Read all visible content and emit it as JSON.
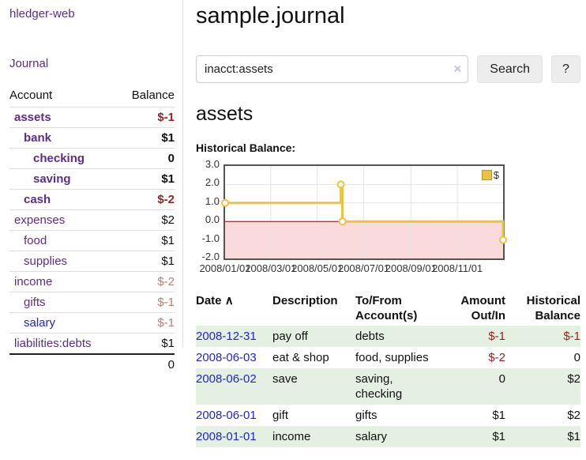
{
  "colors": {
    "link_purple": "#5b2d90",
    "link_blue": "#2222dd",
    "negative": "#9d1e1e",
    "negative_muted": "#bc7a72",
    "row_green": "#e4f0e2",
    "button_bg": "#ededed",
    "chart_line": "#edc240"
  },
  "sidebar": {
    "app_title": "hledger-web",
    "journal_link": "Journal",
    "accounts": {
      "col_account": "Account",
      "col_balance": "Balance",
      "rows": [
        {
          "name": "assets",
          "level": 0,
          "bold": true,
          "link": "purple",
          "balance": "$-1",
          "tone": "neg"
        },
        {
          "name": "bank",
          "level": 1,
          "bold": true,
          "link": "purple",
          "balance": "$1",
          "tone": "plain"
        },
        {
          "name": "checking",
          "level": 2,
          "bold": true,
          "link": "purple",
          "balance": "0",
          "tone": "plain"
        },
        {
          "name": "saving",
          "level": 2,
          "bold": true,
          "link": "purple",
          "balance": "$1",
          "tone": "plain"
        },
        {
          "name": "cash",
          "level": 1,
          "bold": true,
          "link": "purple",
          "balance": "$-2",
          "tone": "neg"
        },
        {
          "name": "expenses",
          "level": 0,
          "bold": false,
          "link": "purple",
          "balance": "$2",
          "tone": "plain"
        },
        {
          "name": "food",
          "level": 1,
          "bold": false,
          "link": "purple",
          "balance": "$1",
          "tone": "plain"
        },
        {
          "name": "supplies",
          "level": 1,
          "bold": false,
          "link": "purple",
          "balance": "$1",
          "tone": "plain"
        },
        {
          "name": "income",
          "level": 0,
          "bold": false,
          "link": "purple",
          "balance": "$-2",
          "tone": "neg-muted"
        },
        {
          "name": "gifts",
          "level": 1,
          "bold": false,
          "link": "purple",
          "balance": "$-1",
          "tone": "neg-muted"
        },
        {
          "name": "salary",
          "level": 1,
          "bold": false,
          "link": "blue",
          "balance": "$-1",
          "tone": "neg-muted"
        },
        {
          "name": "liabilities:debts",
          "level": 0,
          "bold": false,
          "link": "purple",
          "balance": "$1",
          "tone": "plain"
        }
      ],
      "total": "0"
    }
  },
  "header": {
    "title": "sample.journal"
  },
  "search": {
    "value": "inacct:assets",
    "clear_icon": "×",
    "button_label": "Search",
    "help_label": "?"
  },
  "main": {
    "account_heading": "assets",
    "chart_label": "Historical Balance:"
  },
  "chart_data": {
    "type": "line",
    "title": "Historical Balance",
    "legend": "$",
    "xlim": [
      "2008-01-01",
      "2008-12-31"
    ],
    "ylim": [
      -2,
      3
    ],
    "grid": true,
    "legend_position": "top-right",
    "series": [
      {
        "name": "$",
        "step": true,
        "points": [
          [
            "2008-01-01",
            1
          ],
          [
            "2008-06-01",
            2
          ],
          [
            "2008-06-03",
            0
          ],
          [
            "2008-12-31",
            -1
          ]
        ]
      }
    ],
    "x_ticks": [
      {
        "date": "2008-01-01",
        "label": "2008/01/01"
      },
      {
        "date": "2008-03-01",
        "label": "2008/03/01"
      },
      {
        "date": "2008-05-01",
        "label": "2008/05/01"
      },
      {
        "date": "2008-07-01",
        "label": "2008/07/01"
      },
      {
        "date": "2008-09-01",
        "label": "2008/09/01"
      },
      {
        "date": "2008-11-01",
        "label": "2008/11/01"
      }
    ],
    "y_ticks": [
      "3.0",
      "2.0",
      "1.0",
      "0.0",
      "-1.0",
      "-2.0"
    ],
    "style": {
      "line": "#edc240",
      "marker_fill": "#ffffff",
      "negative_fill": "#fbdadc",
      "zero_line": "#8b0000",
      "grid_line": "#e4e4e4",
      "border": "#545454"
    }
  },
  "register": {
    "headers": {
      "date": "Date",
      "sort_icon": "∧",
      "description": "Description",
      "accounts": "To/From Account(s)",
      "amount": "Amount Out/In",
      "balance": "Historical Balance"
    },
    "rows": [
      {
        "date": "2008-12-31",
        "description": "pay off",
        "accounts": "debts",
        "amount": "$-1",
        "balance": "$-1"
      },
      {
        "date": "2008-06-03",
        "description": "eat & shop",
        "accounts": "food, supplies",
        "amount": "$-2",
        "balance": "0"
      },
      {
        "date": "2008-06-02",
        "description": "save",
        "accounts": "saving, checking",
        "amount": "0",
        "balance": "$2"
      },
      {
        "date": "2008-06-01",
        "description": "gift",
        "accounts": "gifts",
        "amount": "$1",
        "balance": "$2"
      },
      {
        "date": "2008-01-01",
        "description": "income",
        "accounts": "salary",
        "amount": "$1",
        "balance": "$1"
      }
    ]
  }
}
